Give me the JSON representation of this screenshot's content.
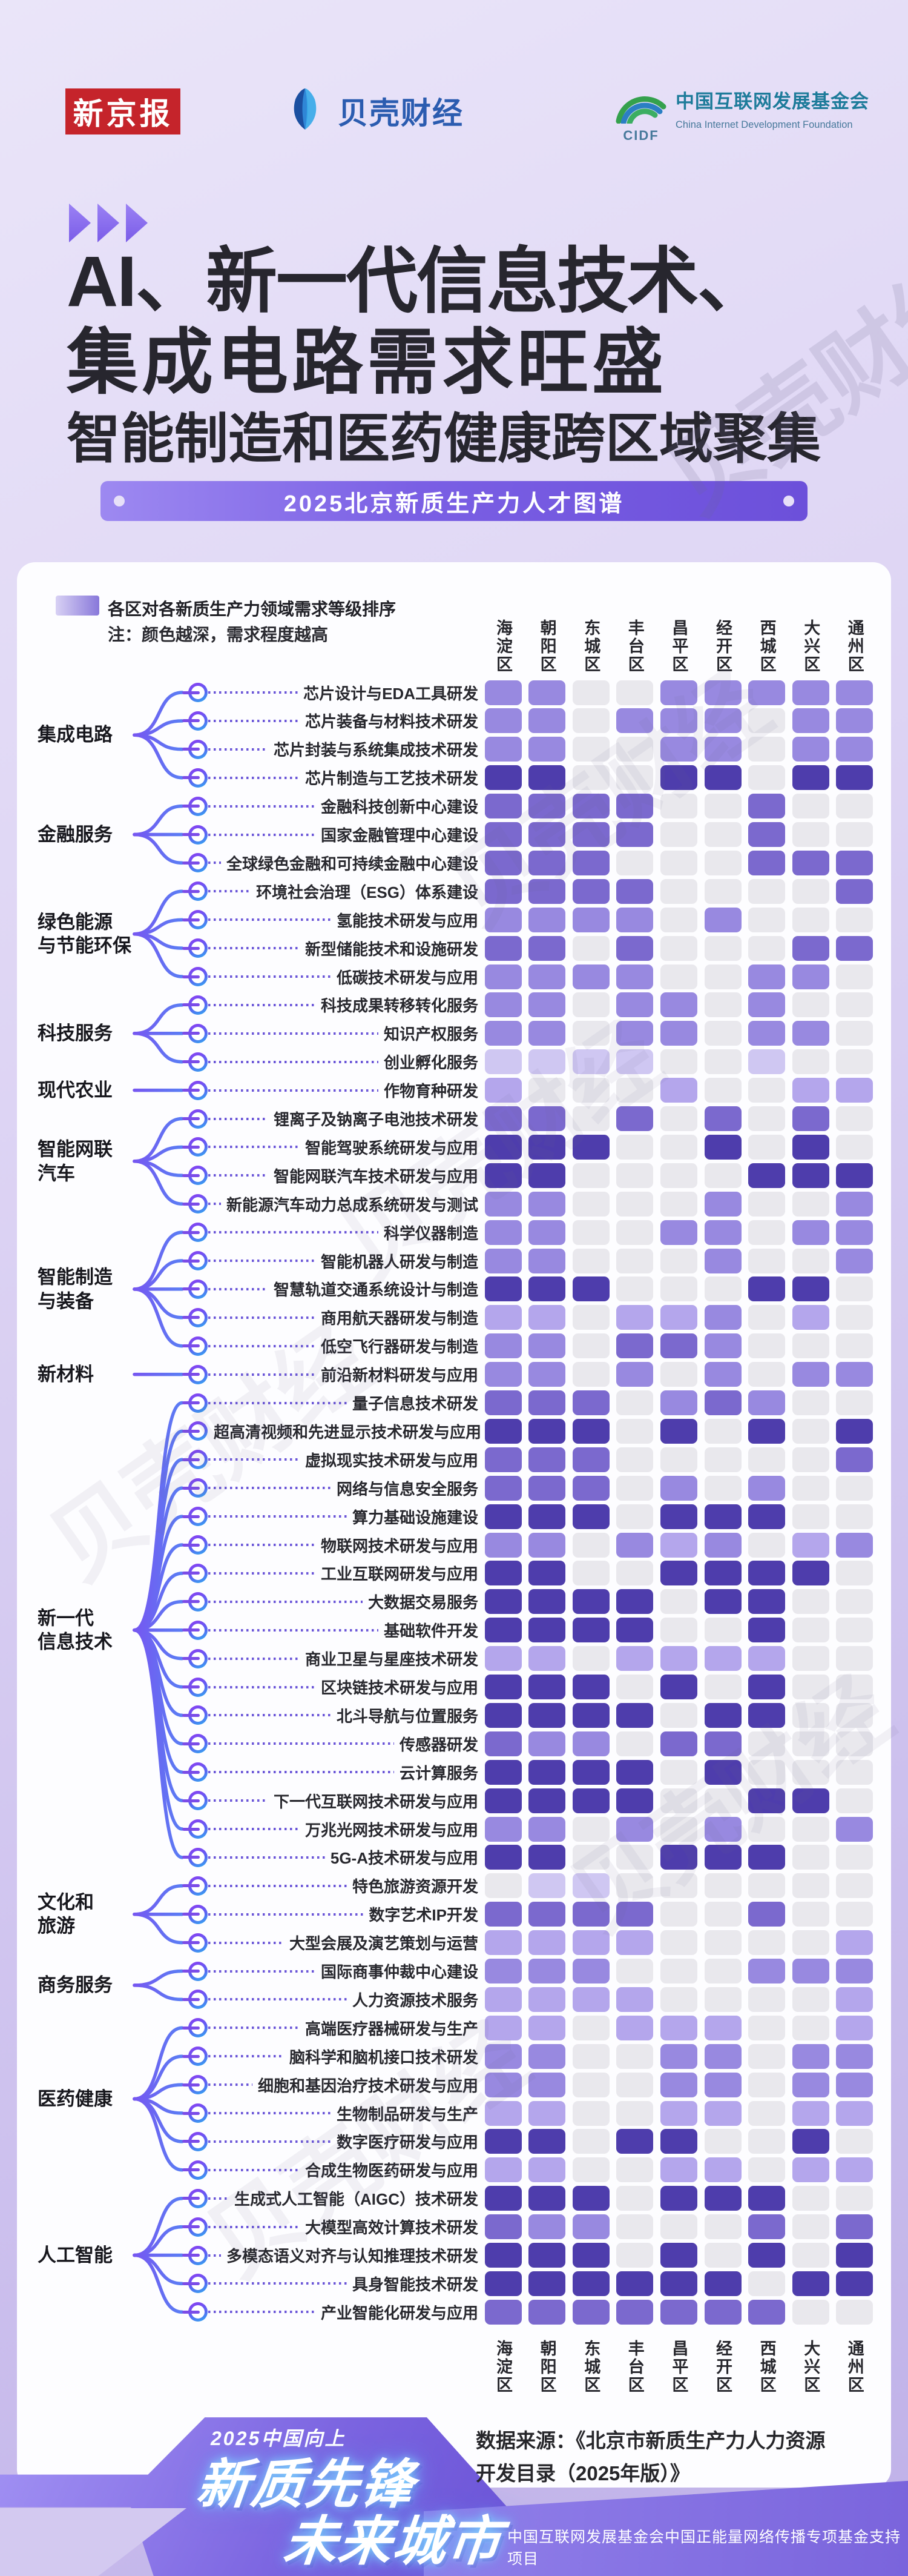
{
  "header": {
    "brand_xjb": "新京报",
    "brand_beike": "贝壳财经",
    "cidf_abbr": "CIDF",
    "cidf_cn": "中国互联网发展基金会",
    "cidf_en": "China Internet Development Foundation"
  },
  "title": {
    "line1": "AI、新一代信息技术、",
    "line2": "集成电路需求旺盛",
    "line3": "智能制造和医药健康跨区域聚集",
    "badge": "2025北京新质生产力人才图谱"
  },
  "legend": {
    "line1": "各区对各新质生产力领域需求等级排序",
    "line2": "注：颜色越深，需求程度越高"
  },
  "watermark_text": "贝壳财经",
  "chart_data": {
    "type": "heatmap",
    "title": "2025北京新质生产力人才图谱",
    "value_meaning": "需求等级 0(最低/灰) — 5(最高/深紫)",
    "columns": [
      "海淀区",
      "朝阳区",
      "东城区",
      "丰台区",
      "昌平区",
      "经开区",
      "西城区",
      "大兴区",
      "通州区"
    ],
    "palette": [
      "#e9e8ed",
      "#cfc7f2",
      "#b4a6ec",
      "#9889e0",
      "#7b69ce",
      "#4e3dac"
    ],
    "groups": [
      {
        "name": "集成电路",
        "rows": [
          {
            "label": "芯片设计与EDA工具研发",
            "cells": [
              3,
              3,
              0,
              0,
              3,
              3,
              3,
              3,
              3
            ]
          },
          {
            "label": "芯片装备与材料技术研发",
            "cells": [
              3,
              3,
              0,
              3,
              3,
              3,
              0,
              3,
              3
            ]
          },
          {
            "label": "芯片封装与系统集成技术研发",
            "cells": [
              3,
              3,
              0,
              0,
              3,
              3,
              0,
              3,
              3
            ]
          },
          {
            "label": "芯片制造与工艺技术研发",
            "cells": [
              5,
              5,
              0,
              0,
              5,
              5,
              0,
              5,
              5
            ]
          }
        ]
      },
      {
        "name": "金融服务",
        "rows": [
          {
            "label": "金融科技创新中心建设",
            "cells": [
              4,
              4,
              4,
              4,
              0,
              0,
              4,
              0,
              0
            ]
          },
          {
            "label": "国家金融管理中心建设",
            "cells": [
              4,
              4,
              4,
              4,
              0,
              0,
              4,
              0,
              0
            ]
          },
          {
            "label": "全球绿色金融和可持续金融中心建设",
            "cells": [
              4,
              4,
              4,
              0,
              0,
              0,
              4,
              4,
              4
            ]
          }
        ]
      },
      {
        "name": "绿色能源\n与节能环保",
        "rows": [
          {
            "label": "环境社会治理（ESG）体系建设",
            "cells": [
              4,
              4,
              4,
              4,
              0,
              0,
              0,
              0,
              4
            ]
          },
          {
            "label": "氢能技术研发与应用",
            "cells": [
              3,
              3,
              3,
              3,
              0,
              3,
              0,
              0,
              0
            ]
          },
          {
            "label": "新型储能技术和设施研发",
            "cells": [
              4,
              4,
              0,
              4,
              0,
              0,
              0,
              4,
              4
            ]
          },
          {
            "label": "低碳技术研发与应用",
            "cells": [
              3,
              3,
              3,
              3,
              0,
              0,
              3,
              3,
              0
            ]
          }
        ]
      },
      {
        "name": "科技服务",
        "rows": [
          {
            "label": "科技成果转移转化服务",
            "cells": [
              3,
              3,
              0,
              3,
              3,
              0,
              3,
              0,
              0
            ]
          },
          {
            "label": "知识产权服务",
            "cells": [
              3,
              3,
              0,
              3,
              3,
              0,
              3,
              3,
              0
            ]
          },
          {
            "label": "创业孵化服务",
            "cells": [
              1,
              1,
              1,
              1,
              0,
              0,
              1,
              0,
              0
            ]
          }
        ]
      },
      {
        "name": "现代农业",
        "rows": [
          {
            "label": "作物育种研发",
            "cells": [
              2,
              0,
              0,
              0,
              2,
              0,
              0,
              2,
              2
            ]
          }
        ]
      },
      {
        "name": "智能网联\n汽车",
        "rows": [
          {
            "label": "锂离子及钠离子电池技术研发",
            "cells": [
              4,
              4,
              0,
              4,
              0,
              4,
              0,
              4,
              0
            ]
          },
          {
            "label": "智能驾驶系统研发与应用",
            "cells": [
              5,
              5,
              5,
              0,
              0,
              5,
              0,
              5,
              0
            ]
          },
          {
            "label": "智能网联汽车技术研发与应用",
            "cells": [
              5,
              5,
              0,
              0,
              0,
              0,
              5,
              5,
              5
            ]
          },
          {
            "label": "新能源汽车动力总成系统研发与测试",
            "cells": [
              3,
              3,
              0,
              0,
              0,
              3,
              0,
              0,
              3
            ]
          }
        ]
      },
      {
        "name": "智能制造\n与装备",
        "rows": [
          {
            "label": "科学仪器制造",
            "cells": [
              3,
              3,
              0,
              0,
              3,
              3,
              0,
              3,
              3
            ]
          },
          {
            "label": "智能机器人研发与制造",
            "cells": [
              3,
              3,
              0,
              0,
              0,
              3,
              0,
              0,
              3
            ]
          },
          {
            "label": "智慧轨道交通系统设计与制造",
            "cells": [
              5,
              5,
              5,
              0,
              0,
              0,
              5,
              5,
              0
            ]
          },
          {
            "label": "商用航天器研发与制造",
            "cells": [
              2,
              2,
              0,
              2,
              2,
              3,
              0,
              2,
              0
            ]
          },
          {
            "label": "低空飞行器研发与制造",
            "cells": [
              3,
              3,
              0,
              4,
              4,
              3,
              0,
              0,
              0
            ]
          }
        ]
      },
      {
        "name": "新材料",
        "rows": [
          {
            "label": "前沿新材料研发与应用",
            "cells": [
              3,
              3,
              0,
              3,
              0,
              3,
              0,
              3,
              3
            ]
          }
        ]
      },
      {
        "name": "新一代\n信息技术",
        "rows": [
          {
            "label": "量子信息技术研发",
            "cells": [
              4,
              4,
              4,
              0,
              3,
              4,
              3,
              0,
              0
            ]
          },
          {
            "label": "超高清视频和先进显示技术研发与应用",
            "cells": [
              5,
              5,
              5,
              0,
              5,
              0,
              5,
              0,
              5
            ]
          },
          {
            "label": "虚拟现实技术研发与应用",
            "cells": [
              4,
              4,
              4,
              0,
              0,
              0,
              0,
              0,
              4
            ]
          },
          {
            "label": "网络与信息安全服务",
            "cells": [
              4,
              4,
              4,
              0,
              3,
              0,
              3,
              0,
              0
            ]
          },
          {
            "label": "算力基础设施建设",
            "cells": [
              5,
              5,
              5,
              0,
              5,
              5,
              5,
              0,
              0
            ]
          },
          {
            "label": "物联网技术研发与应用",
            "cells": [
              3,
              3,
              0,
              3,
              2,
              3,
              0,
              2,
              3
            ]
          },
          {
            "label": "工业互联网研发与应用",
            "cells": [
              5,
              5,
              0,
              0,
              5,
              5,
              5,
              5,
              0
            ]
          },
          {
            "label": "大数据交易服务",
            "cells": [
              5,
              5,
              5,
              5,
              0,
              5,
              5,
              0,
              0
            ]
          },
          {
            "label": "基础软件开发",
            "cells": [
              5,
              5,
              5,
              5,
              0,
              0,
              5,
              0,
              0
            ]
          },
          {
            "label": "商业卫星与星座技术研发",
            "cells": [
              2,
              2,
              0,
              2,
              2,
              2,
              2,
              0,
              0
            ]
          },
          {
            "label": "区块链技术研发与应用",
            "cells": [
              5,
              5,
              5,
              0,
              5,
              0,
              5,
              0,
              0
            ]
          },
          {
            "label": "北斗导航与位置服务",
            "cells": [
              5,
              5,
              5,
              5,
              0,
              5,
              5,
              0,
              0
            ]
          },
          {
            "label": "传感器研发",
            "cells": [
              4,
              3,
              3,
              0,
              4,
              4,
              0,
              0,
              0
            ]
          },
          {
            "label": "云计算服务",
            "cells": [
              5,
              5,
              5,
              5,
              0,
              5,
              0,
              0,
              0
            ]
          },
          {
            "label": "下一代互联网技术研发与应用",
            "cells": [
              5,
              5,
              5,
              5,
              0,
              0,
              5,
              5,
              0
            ]
          },
          {
            "label": "万兆光网技术研发与应用",
            "cells": [
              3,
              3,
              0,
              3,
              0,
              3,
              0,
              0,
              3
            ]
          },
          {
            "label": "5G-A技术研发与应用",
            "cells": [
              5,
              5,
              0,
              0,
              5,
              5,
              5,
              0,
              0
            ]
          }
        ]
      },
      {
        "name": "文化和\n旅游",
        "rows": [
          {
            "label": "特色旅游资源开发",
            "cells": [
              0,
              1,
              1,
              0,
              0,
              0,
              0,
              0,
              0
            ]
          },
          {
            "label": "数字艺术IP开发",
            "cells": [
              4,
              4,
              4,
              4,
              0,
              0,
              4,
              0,
              0
            ]
          },
          {
            "label": "大型会展及演艺策划与运营",
            "cells": [
              2,
              2,
              2,
              2,
              0,
              0,
              0,
              0,
              2
            ]
          }
        ]
      },
      {
        "name": "商务服务",
        "rows": [
          {
            "label": "国际商事仲裁中心建设",
            "cells": [
              3,
              3,
              3,
              0,
              0,
              0,
              3,
              3,
              3
            ]
          },
          {
            "label": "人力资源技术服务",
            "cells": [
              2,
              2,
              2,
              2,
              0,
              0,
              0,
              0,
              2
            ]
          }
        ]
      },
      {
        "name": "医药健康",
        "rows": [
          {
            "label": "高端医疗器械研发与生产",
            "cells": [
              2,
              2,
              0,
              2,
              2,
              2,
              0,
              0,
              2
            ]
          },
          {
            "label": "脑科学和脑机接口技术研发",
            "cells": [
              3,
              3,
              0,
              0,
              3,
              3,
              0,
              3,
              3
            ]
          },
          {
            "label": "细胞和基因治疗技术研发与应用",
            "cells": [
              3,
              3,
              0,
              0,
              3,
              3,
              0,
              3,
              3
            ]
          },
          {
            "label": "生物制品研发与生产",
            "cells": [
              2,
              2,
              0,
              0,
              2,
              2,
              0,
              2,
              2
            ]
          },
          {
            "label": "数字医疗研发与应用",
            "cells": [
              5,
              5,
              0,
              5,
              5,
              0,
              0,
              5,
              0
            ]
          },
          {
            "label": "合成生物医药研发与应用",
            "cells": [
              2,
              2,
              0,
              0,
              2,
              2,
              0,
              2,
              2
            ]
          }
        ]
      },
      {
        "name": "人工智能",
        "rows": [
          {
            "label": "生成式人工智能（AIGC）技术研发",
            "cells": [
              5,
              5,
              5,
              0,
              5,
              5,
              5,
              0,
              0
            ]
          },
          {
            "label": "大模型高效计算技术研发",
            "cells": [
              4,
              3,
              3,
              0,
              0,
              0,
              4,
              0,
              4
            ]
          },
          {
            "label": "多模态语义对齐与认知推理技术研发",
            "cells": [
              5,
              5,
              5,
              0,
              5,
              0,
              5,
              0,
              5
            ]
          },
          {
            "label": "具身智能技术研发",
            "cells": [
              5,
              5,
              5,
              5,
              5,
              5,
              0,
              5,
              5
            ]
          },
          {
            "label": "产业智能化研发与应用",
            "cells": [
              4,
              4,
              4,
              4,
              4,
              4,
              4,
              0,
              0
            ]
          }
        ]
      }
    ]
  },
  "footer": {
    "source_line1": "数据来源：《北京市新质生产力人力资源",
    "source_line2": "开发目录（2025年版）》",
    "campaign_tag": "2025中国向上",
    "campaign_line1": "新质先锋",
    "campaign_line2": "未来城市",
    "support": "中国互联网发展基金会中国正能量网络传播专项基金支持项目"
  }
}
